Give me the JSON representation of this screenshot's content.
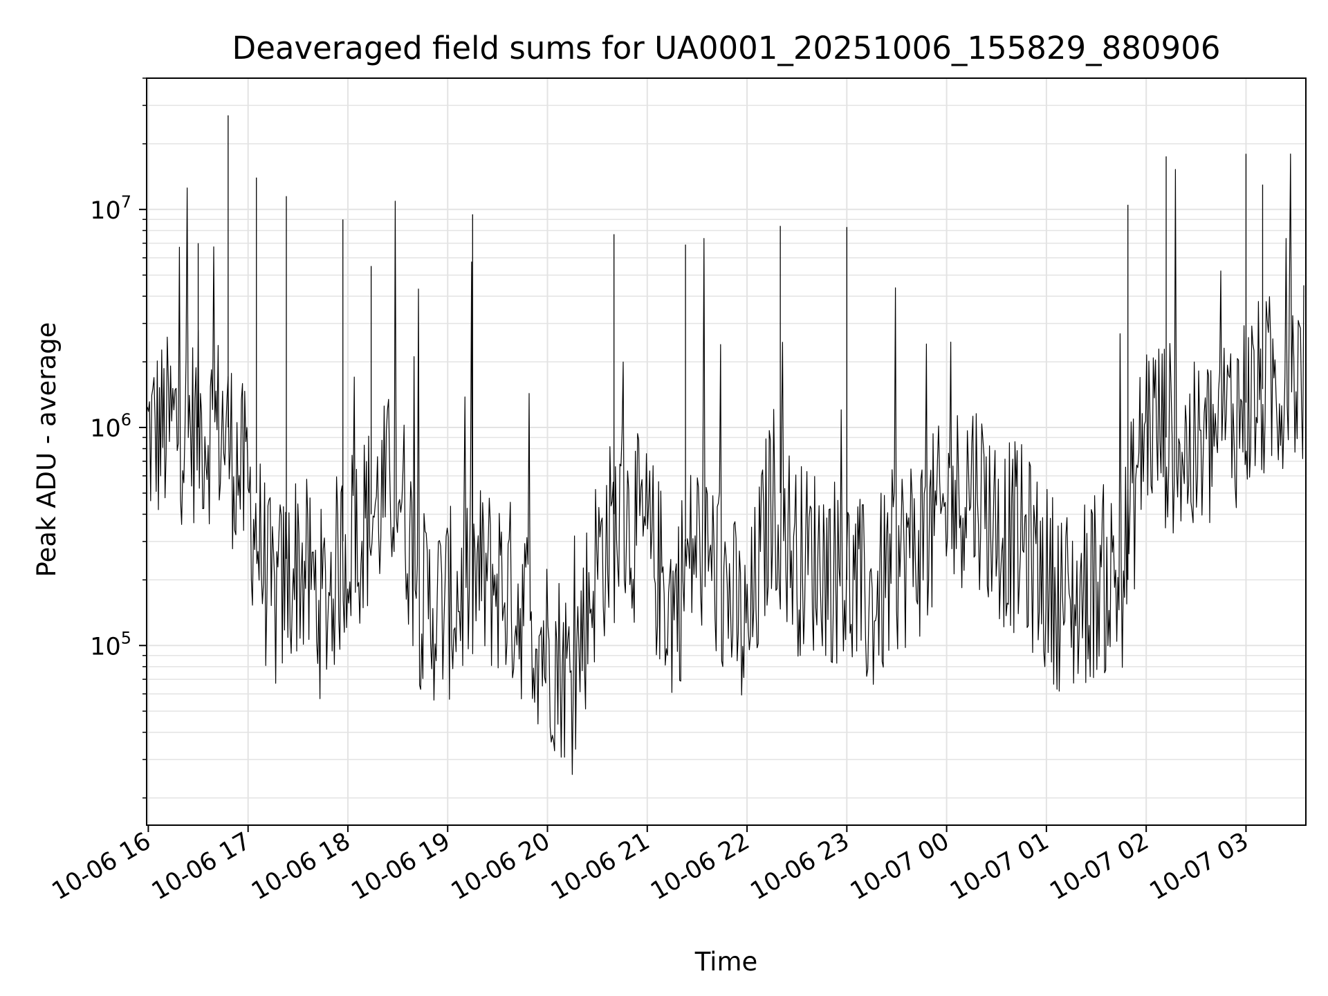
{
  "chart_data": {
    "type": "line",
    "title": "Deaveraged field sums for UA0001_20251006_155829_880906",
    "xlabel": "Time",
    "ylabel": "Peak ADU - average",
    "yscale": "log",
    "ylim": [
      15000,
      40000000
    ],
    "xlim": [
      "2025-10-06 15:59",
      "2025-10-07 03:36"
    ],
    "grid": true,
    "line_color": "#000000",
    "x_ticks": [
      {
        "label": "10-06 16",
        "time": "2025-10-06 16:00"
      },
      {
        "label": "10-06 17",
        "time": "2025-10-06 17:00"
      },
      {
        "label": "10-06 18",
        "time": "2025-10-06 18:00"
      },
      {
        "label": "10-06 19",
        "time": "2025-10-06 19:00"
      },
      {
        "label": "10-06 20",
        "time": "2025-10-06 20:00"
      },
      {
        "label": "10-06 21",
        "time": "2025-10-06 21:00"
      },
      {
        "label": "10-06 22",
        "time": "2025-10-06 22:00"
      },
      {
        "label": "10-06 23",
        "time": "2025-10-06 23:00"
      },
      {
        "label": "10-07 00",
        "time": "2025-10-07 00:00"
      },
      {
        "label": "10-07 01",
        "time": "2025-10-07 01:00"
      },
      {
        "label": "10-07 02",
        "time": "2025-10-07 02:00"
      },
      {
        "label": "10-07 03",
        "time": "2025-10-07 03:00"
      }
    ],
    "y_ticks": [
      {
        "base": "10",
        "exp": "5",
        "value": 100000
      },
      {
        "base": "10",
        "exp": "6",
        "value": 1000000
      },
      {
        "base": "10",
        "exp": "7",
        "value": 10000000
      }
    ],
    "series": [
      {
        "x": [
          "2025-10-06 16:00",
          "2025-10-06 16:15",
          "2025-10-06 16:30",
          "2025-10-06 16:45",
          "2025-10-06 17:00",
          "2025-10-06 17:15",
          "2025-10-06 17:30",
          "2025-10-06 17:45",
          "2025-10-06 18:00",
          "2025-10-06 18:15",
          "2025-10-06 18:30",
          "2025-10-06 18:45",
          "2025-10-06 19:00",
          "2025-10-06 19:15",
          "2025-10-06 19:30",
          "2025-10-06 19:45",
          "2025-10-06 20:00",
          "2025-10-06 20:15",
          "2025-10-06 20:30",
          "2025-10-06 20:45",
          "2025-10-06 21:00",
          "2025-10-06 21:15",
          "2025-10-06 21:30",
          "2025-10-06 21:45",
          "2025-10-06 22:00",
          "2025-10-06 22:15",
          "2025-10-06 22:30",
          "2025-10-06 22:45",
          "2025-10-06 23:00",
          "2025-10-06 23:15",
          "2025-10-06 23:30",
          "2025-10-06 23:45",
          "2025-10-07 00:00",
          "2025-10-07 00:15",
          "2025-10-07 00:30",
          "2025-10-07 00:45",
          "2025-10-07 01:00",
          "2025-10-07 01:15",
          "2025-10-07 01:30",
          "2025-10-07 01:45",
          "2025-10-07 02:00",
          "2025-10-07 02:15",
          "2025-10-07 02:30",
          "2025-10-07 02:45",
          "2025-10-07 03:00",
          "2025-10-07 03:15",
          "2025-10-07 03:30"
        ],
        "y": [
          900000,
          1000000,
          1000000,
          1000000,
          500000,
          150000,
          250000,
          150000,
          300000,
          400000,
          600000,
          150000,
          150000,
          200000,
          200000,
          150000,
          100000,
          70000,
          250000,
          400000,
          300000,
          150000,
          300000,
          200000,
          100000,
          500000,
          250000,
          250000,
          200000,
          150000,
          250000,
          300000,
          400000,
          600000,
          350000,
          300000,
          200000,
          150000,
          200000,
          200000,
          1100000,
          900000,
          700000,
          1000000,
          1300000,
          1500000,
          1800000
        ]
      }
    ],
    "spikes": [
      {
        "x": "2025-10-06 16:30",
        "y": 7000000
      },
      {
        "x": "2025-10-06 16:48",
        "y": 27000000
      },
      {
        "x": "2025-10-06 17:05",
        "y": 14000000
      },
      {
        "x": "2025-10-06 17:23",
        "y": 11500000
      },
      {
        "x": "2025-10-06 17:57",
        "y": 9000000
      },
      {
        "x": "2025-10-06 18:14",
        "y": 5500000
      },
      {
        "x": "2025-10-06 19:15",
        "y": 9500000
      },
      {
        "x": "2025-10-06 20:40",
        "y": 7700000
      },
      {
        "x": "2025-10-06 21:23",
        "y": 6900000
      },
      {
        "x": "2025-10-06 22:20",
        "y": 8400000
      },
      {
        "x": "2025-10-06 23:00",
        "y": 8300000
      },
      {
        "x": "2025-10-07 01:49",
        "y": 10500000
      },
      {
        "x": "2025-10-07 02:12",
        "y": 17500000
      },
      {
        "x": "2025-10-07 03:00",
        "y": 18000000
      },
      {
        "x": "2025-10-07 03:10",
        "y": 13000000
      }
    ]
  }
}
